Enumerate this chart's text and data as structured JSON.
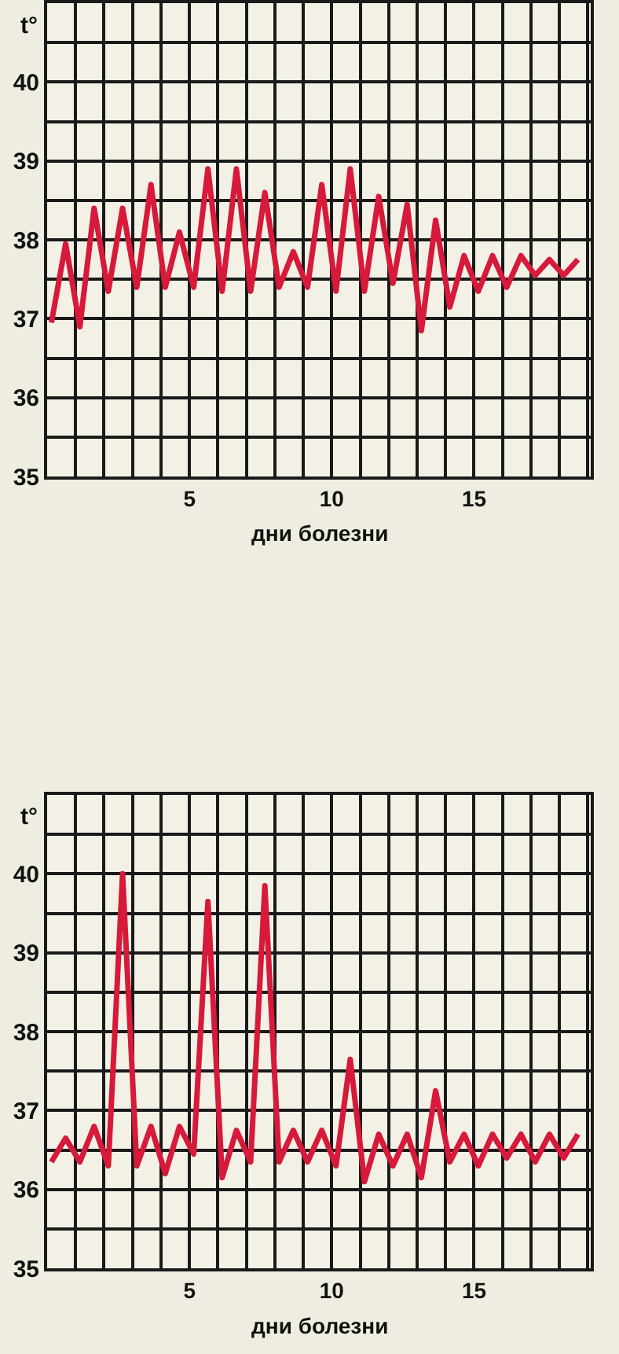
{
  "chart_data": [
    {
      "type": "line",
      "xlabel": "дни болезни",
      "ylabel": "t°",
      "color": "#d7193a",
      "grid": true,
      "marker": "none",
      "line_style": "solid",
      "legend": false,
      "x": [
        0.15,
        0.65,
        1.15,
        1.65,
        2.15,
        2.65,
        3.15,
        3.65,
        4.15,
        4.65,
        5.15,
        5.65,
        6.15,
        6.65,
        7.15,
        7.65,
        8.15,
        8.65,
        9.15,
        9.65,
        10.15,
        10.65,
        11.15,
        11.65,
        12.15,
        12.65,
        13.15,
        13.65,
        14.15,
        14.65,
        15.15,
        15.65,
        16.15,
        16.65,
        17.15,
        17.65,
        18.15,
        18.65
      ],
      "values": [
        36.95,
        37.95,
        36.9,
        38.4,
        37.35,
        38.4,
        37.4,
        38.7,
        37.4,
        38.1,
        37.4,
        38.9,
        37.35,
        38.9,
        37.35,
        38.6,
        37.4,
        37.85,
        37.4,
        38.7,
        37.35,
        38.9,
        37.35,
        38.55,
        37.45,
        38.45,
        36.85,
        38.25,
        37.15,
        37.8,
        37.35,
        37.8,
        37.4,
        37.8,
        37.55,
        37.75,
        37.55,
        37.75
      ],
      "xlim": [
        0,
        19.1
      ],
      "ylim": [
        35,
        41
      ],
      "xticks": [
        {
          "value": 1,
          "label": null
        },
        {
          "value": 2,
          "label": null
        },
        {
          "value": 3,
          "label": null
        },
        {
          "value": 4,
          "label": null
        },
        5,
        {
          "value": 6,
          "label": null
        },
        {
          "value": 7,
          "label": null
        },
        {
          "value": 8,
          "label": null
        },
        {
          "value": 9,
          "label": null
        },
        10,
        {
          "value": 11,
          "label": null
        },
        {
          "value": 12,
          "label": null
        },
        {
          "value": 13,
          "label": null
        },
        {
          "value": 14,
          "label": null
        },
        15,
        {
          "value": 16,
          "label": null
        },
        {
          "value": 17,
          "label": null
        },
        {
          "value": 18,
          "label": null
        },
        {
          "value": 19,
          "label": null
        }
      ],
      "yticks": [
        35,
        {
          "value": 35.5,
          "label": null
        },
        36,
        {
          "value": 36.5,
          "label": null
        },
        37,
        {
          "value": 37.5,
          "label": null
        },
        38,
        {
          "value": 38.5,
          "label": null
        },
        39,
        {
          "value": 39.5,
          "label": null
        },
        40,
        {
          "value": 40.5,
          "label": null
        }
      ]
    },
    {
      "type": "line",
      "xlabel": "дни болезни",
      "ylabel": "t°",
      "color": "#d7193a",
      "grid": true,
      "marker": "none",
      "line_style": "solid",
      "legend": false,
      "x": [
        0.15,
        0.65,
        1.15,
        1.65,
        2.15,
        2.65,
        3.15,
        3.65,
        4.15,
        4.65,
        5.15,
        5.65,
        6.15,
        6.65,
        7.15,
        7.65,
        8.15,
        8.65,
        9.15,
        9.65,
        10.15,
        10.65,
        11.15,
        11.65,
        12.15,
        12.65,
        13.15,
        13.65,
        14.15,
        14.65,
        15.15,
        15.65,
        16.15,
        16.65,
        17.15,
        17.65,
        18.15,
        18.65
      ],
      "values": [
        36.35,
        36.65,
        36.35,
        36.8,
        36.3,
        40.0,
        36.3,
        36.8,
        36.2,
        36.8,
        36.45,
        39.65,
        36.15,
        36.75,
        36.35,
        39.85,
        36.35,
        36.75,
        36.35,
        36.75,
        36.3,
        37.65,
        36.1,
        36.7,
        36.3,
        36.7,
        36.15,
        37.25,
        36.35,
        36.7,
        36.3,
        36.7,
        36.4,
        36.7,
        36.35,
        36.7,
        36.4,
        36.7
      ],
      "xlim": [
        0,
        19.1
      ],
      "ylim": [
        35,
        41
      ],
      "xticks": [
        {
          "value": 1,
          "label": null
        },
        {
          "value": 2,
          "label": null
        },
        {
          "value": 3,
          "label": null
        },
        {
          "value": 4,
          "label": null
        },
        5,
        {
          "value": 6,
          "label": null
        },
        {
          "value": 7,
          "label": null
        },
        {
          "value": 8,
          "label": null
        },
        {
          "value": 9,
          "label": null
        },
        10,
        {
          "value": 11,
          "label": null
        },
        {
          "value": 12,
          "label": null
        },
        {
          "value": 13,
          "label": null
        },
        {
          "value": 14,
          "label": null
        },
        15,
        {
          "value": 16,
          "label": null
        },
        {
          "value": 17,
          "label": null
        },
        {
          "value": 18,
          "label": null
        },
        {
          "value": 19,
          "label": null
        }
      ],
      "yticks": [
        35,
        {
          "value": 35.5,
          "label": null
        },
        36,
        {
          "value": 36.5,
          "label": null
        },
        37,
        {
          "value": 37.5,
          "label": null
        },
        38,
        {
          "value": 38.5,
          "label": null
        },
        39,
        {
          "value": 39.5,
          "label": null
        },
        40,
        {
          "value": 40.5,
          "label": null
        }
      ]
    }
  ]
}
